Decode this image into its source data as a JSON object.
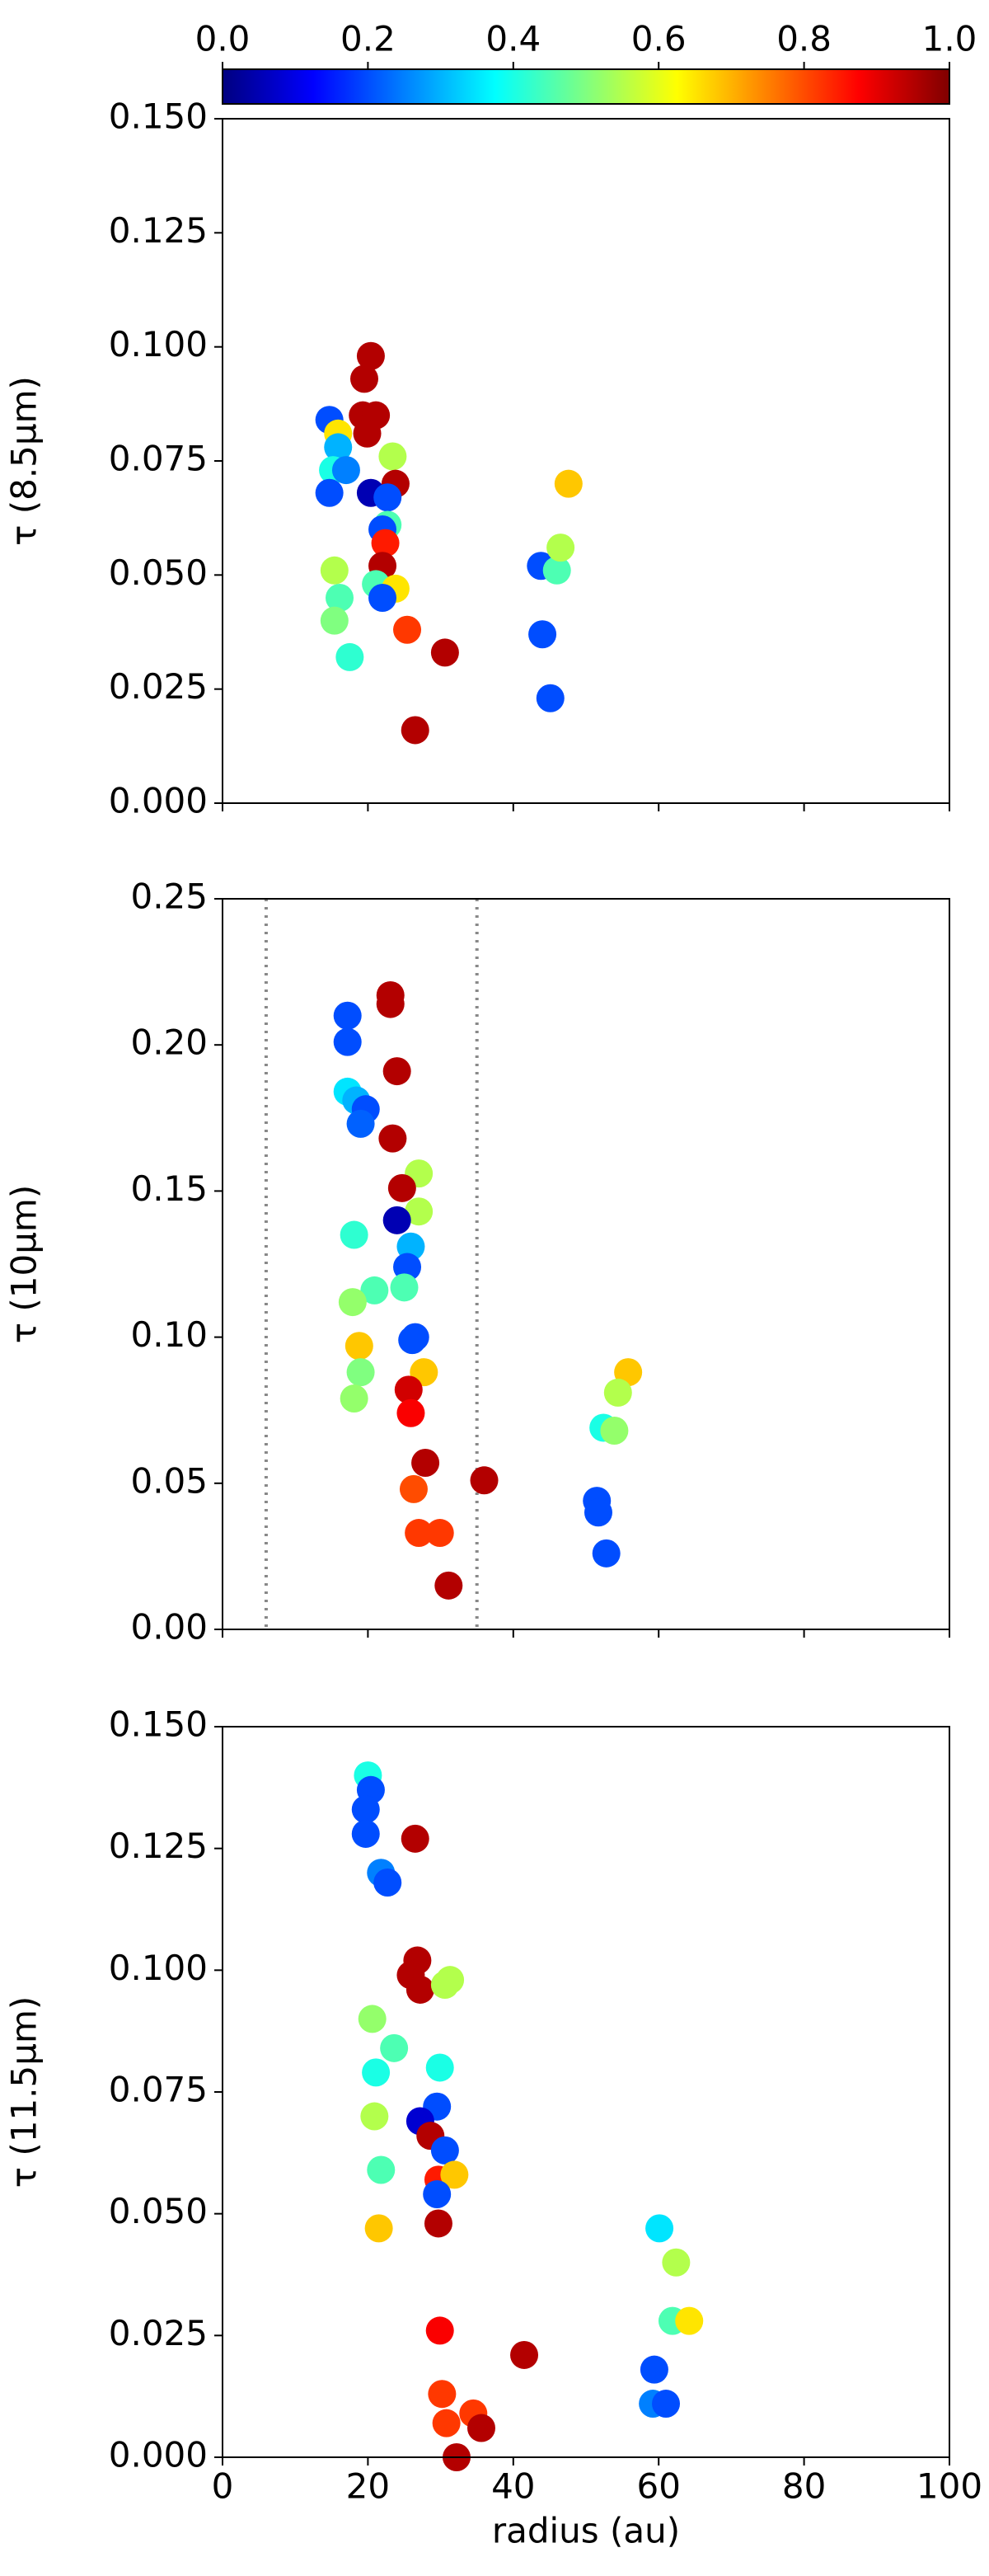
{
  "chart_data": [
    {
      "type": "scatter",
      "ylabel": "τ (8.5µm)",
      "colormap": "jet",
      "colorbar": {
        "lim": [
          0,
          1
        ],
        "ticks": [
          {
            "value": 0,
            "label": "0.0"
          },
          0.2,
          0.4,
          0.6,
          0.8,
          {
            "value": 1,
            "label": "1.0"
          }
        ]
      },
      "xlim": [
        0,
        100
      ],
      "xticks": [
        0,
        20,
        40,
        60,
        80,
        100
      ],
      "show_xtick_labels": false,
      "ylim": [
        0,
        0.15
      ],
      "yticks": [
        {
          "value": 0,
          "label": "0.000"
        },
        {
          "value": 0.025,
          "label": "0.025"
        },
        {
          "value": 0.05,
          "label": "0.050"
        },
        {
          "value": 0.075,
          "label": "0.075"
        },
        {
          "value": 0.1,
          "label": "0.100"
        },
        {
          "value": 0.125,
          "label": "0.125"
        },
        {
          "value": 0.15,
          "label": "0.150"
        }
      ],
      "series": [
        {
          "x": [
            14.7,
            20.4,
            19.5,
            19.3,
            21.1,
            19.9,
            15.9,
            15.9,
            15.2,
            17,
            14.7,
            20.4,
            23.4,
            23.8,
            22.7,
            22.7,
            22,
            22.4,
            22,
            15.4,
            21.1,
            23.8,
            16.1,
            22,
            15.4,
            17.5,
            25.4,
            30.6,
            26.5,
            43.8,
            46,
            46.5,
            47.6,
            44,
            45.1
          ],
          "values": [
            0.084,
            0.098,
            0.093,
            0.085,
            0.085,
            0.081,
            0.081,
            0.078,
            0.073,
            0.073,
            0.068,
            0.068,
            0.076,
            0.07,
            0.067,
            0.061,
            0.06,
            0.057,
            0.052,
            0.051,
            0.048,
            0.047,
            0.045,
            0.045,
            0.04,
            0.032,
            0.038,
            0.033,
            0.016,
            0.052,
            0.051,
            0.056,
            0.07,
            0.037,
            0.023
          ],
          "color_values": [
            0.2,
            0.95,
            0.95,
            0.95,
            0.95,
            0.95,
            0.65,
            0.3,
            0.4,
            0.25,
            0.2,
            0.05,
            0.55,
            0.95,
            0.2,
            0.45,
            0.2,
            0.85,
            0.95,
            0.55,
            0.45,
            0.65,
            0.45,
            0.2,
            0.5,
            0.42,
            0.82,
            0.95,
            0.95,
            0.2,
            0.45,
            0.55,
            0.68,
            0.2,
            0.2
          ]
        }
      ]
    },
    {
      "type": "scatter",
      "ylabel": "τ (10µm)",
      "colormap": "jet",
      "xlim": [
        0,
        100
      ],
      "xticks": [
        0,
        20,
        40,
        60,
        80,
        100
      ],
      "show_xtick_labels": false,
      "ylim": [
        0,
        0.25
      ],
      "yticks": [
        {
          "value": 0,
          "label": "0.00"
        },
        {
          "value": 0.05,
          "label": "0.05"
        },
        {
          "value": 0.1,
          "label": "0.10"
        },
        {
          "value": 0.15,
          "label": "0.15"
        },
        {
          "value": 0.2,
          "label": "0.20"
        },
        {
          "value": 0.25,
          "label": "0.25"
        }
      ],
      "vlines": [
        6,
        35
      ],
      "series": [
        {
          "x": [
            17.2,
            17.2,
            23.1,
            23.1,
            24,
            17.2,
            18.4,
            19.7,
            19,
            23.4,
            27,
            24.7,
            27,
            24,
            18.1,
            25.9,
            25.4,
            25,
            20.9,
            17.9,
            26.5,
            26.1,
            18.8,
            27.7,
            19,
            25.6,
            25.9,
            18.1,
            27.9,
            26.3,
            27,
            29.9,
            31.1,
            36,
            55.8,
            54.4,
            52.4,
            53.9,
            51.5,
            51.7,
            52.8
          ],
          "values": [
            0.21,
            0.201,
            0.217,
            0.214,
            0.191,
            0.184,
            0.181,
            0.178,
            0.173,
            0.168,
            0.156,
            0.151,
            0.143,
            0.14,
            0.135,
            0.131,
            0.124,
            0.117,
            0.116,
            0.112,
            0.1,
            0.099,
            0.097,
            0.088,
            0.088,
            0.082,
            0.074,
            0.079,
            0.057,
            0.048,
            0.033,
            0.033,
            0.015,
            0.051,
            0.088,
            0.081,
            0.069,
            0.068,
            0.044,
            0.04,
            0.026
          ],
          "color_values": [
            0.2,
            0.2,
            0.95,
            0.95,
            0.95,
            0.35,
            0.3,
            0.2,
            0.22,
            0.95,
            0.55,
            0.95,
            0.55,
            0.05,
            0.42,
            0.3,
            0.2,
            0.45,
            0.45,
            0.52,
            0.2,
            0.2,
            0.68,
            0.68,
            0.5,
            0.92,
            0.88,
            0.52,
            0.95,
            0.8,
            0.82,
            0.82,
            0.95,
            0.95,
            0.68,
            0.55,
            0.4,
            0.52,
            0.2,
            0.2,
            0.2
          ]
        }
      ]
    },
    {
      "type": "scatter",
      "ylabel": "τ (11.5µm)",
      "xlabel": "radius (au)",
      "colormap": "jet",
      "xlim": [
        0,
        100
      ],
      "xticks": [
        0,
        20,
        40,
        60,
        80,
        100
      ],
      "show_xtick_labels": true,
      "ylim": [
        0,
        0.15
      ],
      "yticks": [
        {
          "value": 0,
          "label": "0.000"
        },
        {
          "value": 0.025,
          "label": "0.025"
        },
        {
          "value": 0.05,
          "label": "0.050"
        },
        {
          "value": 0.075,
          "label": "0.075"
        },
        {
          "value": 0.1,
          "label": "0.100"
        },
        {
          "value": 0.125,
          "label": "0.125"
        },
        {
          "value": 0.15,
          "label": "0.150"
        }
      ],
      "series": [
        {
          "x": [
            20,
            20.4,
            19.7,
            19.7,
            21.8,
            22.7,
            26.5,
            26.8,
            25.9,
            27.2,
            31.3,
            30.6,
            20.6,
            23.6,
            29.9,
            21.1,
            20.9,
            29.5,
            27.2,
            28.6,
            30.6,
            29.7,
            31.9,
            29.5,
            21.8,
            29.7,
            21.5,
            29.9,
            41.5,
            30.2,
            30.8,
            34.5,
            35.6,
            32.2,
            60.1,
            62.4,
            61.9,
            64.2,
            59.4,
            59.2,
            61
          ],
          "values": [
            0.14,
            0.137,
            0.133,
            0.128,
            0.12,
            0.118,
            0.127,
            0.102,
            0.099,
            0.096,
            0.098,
            0.097,
            0.09,
            0.084,
            0.08,
            0.079,
            0.07,
            0.072,
            0.069,
            0.066,
            0.063,
            0.057,
            0.058,
            0.054,
            0.059,
            0.048,
            0.047,
            0.026,
            0.021,
            0.013,
            0.007,
            0.009,
            0.006,
            0,
            0.047,
            0.04,
            0.028,
            0.028,
            0.018,
            0.011,
            0.011
          ],
          "color_values": [
            0.4,
            0.2,
            0.2,
            0.2,
            0.25,
            0.2,
            0.95,
            0.95,
            0.95,
            0.95,
            0.55,
            0.55,
            0.52,
            0.45,
            0.4,
            0.4,
            0.55,
            0.2,
            0.08,
            0.95,
            0.2,
            0.85,
            0.68,
            0.2,
            0.45,
            0.95,
            0.68,
            0.88,
            0.95,
            0.82,
            0.82,
            0.82,
            0.95,
            0.95,
            0.35,
            0.55,
            0.45,
            0.65,
            0.2,
            0.25,
            0.2
          ]
        }
      ]
    }
  ]
}
